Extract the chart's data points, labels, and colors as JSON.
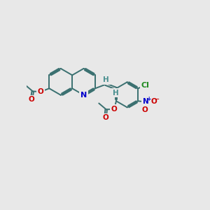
{
  "bg_color": "#e8e8e8",
  "bond_color": "#3a7070",
  "N_color": "#0000cc",
  "O_color": "#cc0000",
  "Cl_color": "#228B22",
  "H_color": "#4a9090",
  "lw": 1.4,
  "figsize": [
    3.0,
    3.0
  ],
  "dpi": 100,
  "xlim": [
    0,
    10
  ],
  "ylim": [
    0,
    10
  ]
}
